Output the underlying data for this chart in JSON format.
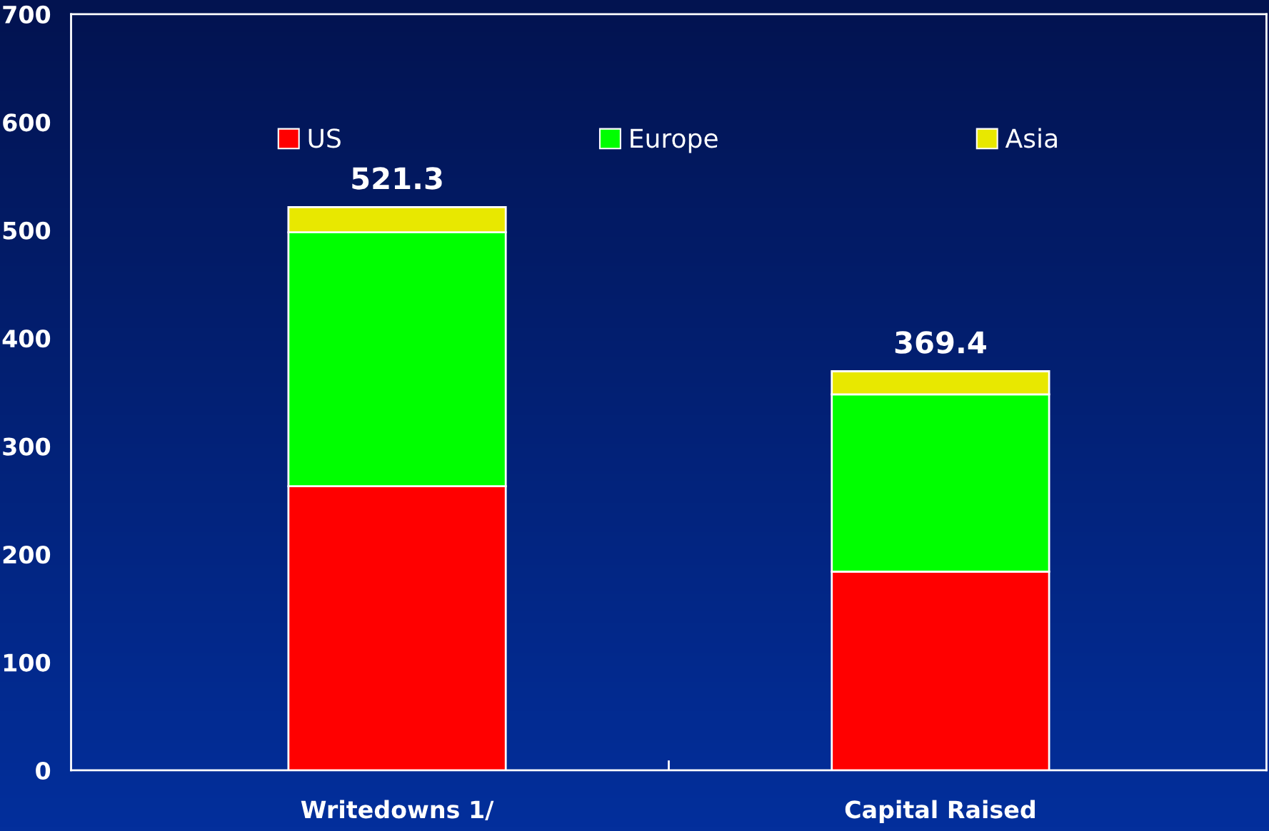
{
  "chart_data": {
    "type": "bar",
    "stacked": true,
    "categories": [
      "Writedowns 1/",
      "Capital Raised"
    ],
    "series": [
      {
        "name": "US",
        "color": "#ff0000",
        "values": [
          263,
          184
        ]
      },
      {
        "name": "Europe",
        "color": "#00ff00",
        "values": [
          235,
          164
        ]
      },
      {
        "name": "Asia",
        "color": "#e8e800",
        "values": [
          23.3,
          21.4
        ]
      }
    ],
    "totals": [
      "521.3",
      "369.4"
    ],
    "ylim": [
      0,
      700
    ],
    "yticks": [
      0,
      100,
      200,
      300,
      400,
      500,
      600,
      700
    ],
    "grid": false,
    "legend": "top"
  }
}
